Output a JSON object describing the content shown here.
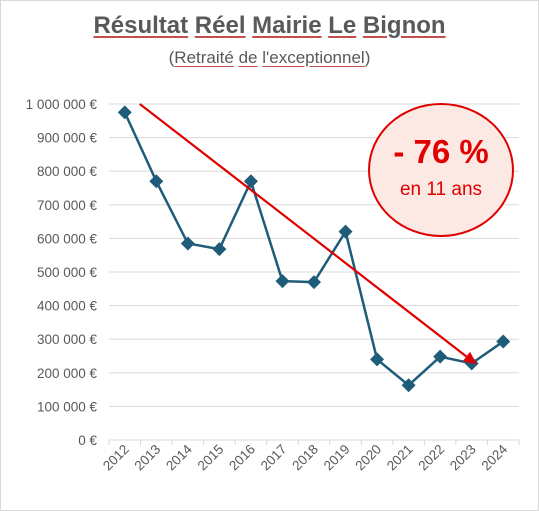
{
  "title_parts": [
    "Résultat",
    "Réel",
    "Mairie",
    "Le",
    "Bignon"
  ],
  "subtitle_parts": [
    "(",
    "Retraité",
    " ",
    "de",
    " ",
    "l'exceptionnel",
    ")"
  ],
  "badge": {
    "value": "- 76 %",
    "label": "en 11 ans"
  },
  "colors": {
    "series": "#1f5c7a",
    "trend": "#e00000",
    "badge_fill": "#fde9e3",
    "grid": "#d9d9d9",
    "text": "#595959"
  },
  "chart_data": {
    "type": "line",
    "title": "Résultat Réel Mairie Le Bignon",
    "subtitle": "(Retraité de l'exceptionnel)",
    "categories": [
      "2012",
      "2013",
      "2014",
      "2015",
      "2016",
      "2017",
      "2018",
      "2019",
      "2020",
      "2021",
      "2022",
      "2023",
      "2024"
    ],
    "values": [
      975000,
      770000,
      585000,
      568000,
      770000,
      473000,
      470000,
      620000,
      240000,
      163000,
      248000,
      228000,
      293000
    ],
    "ylim": [
      0,
      1000000
    ],
    "yticks": [
      0,
      100000,
      200000,
      300000,
      400000,
      500000,
      600000,
      700000,
      800000,
      900000,
      1000000
    ],
    "ytick_labels": [
      "0 €",
      "100 000 €",
      "200 000 €",
      "300 000 €",
      "400 000 €",
      "500 000 €",
      "600 000 €",
      "700 000 €",
      "800 000 €",
      "900 000 €",
      "1 000 000 €"
    ],
    "marker": "diamond",
    "grid": true,
    "trend_arrow": {
      "from": [
        "2012",
        1000000
      ],
      "to": [
        "2023",
        225000
      ]
    }
  }
}
